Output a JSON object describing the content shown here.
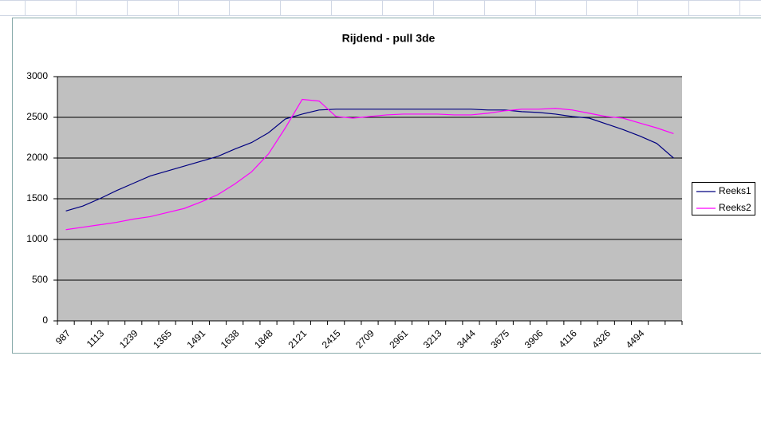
{
  "chart_data": {
    "type": "line",
    "title": "Rijdend - pull 3de",
    "categories": [
      "987",
      null,
      "1113",
      null,
      "1239",
      null,
      "1365",
      null,
      "1491",
      null,
      "1638",
      null,
      "1848",
      null,
      "2121",
      null,
      "2415",
      null,
      "2709",
      null,
      "2961",
      null,
      "3213",
      null,
      "3444",
      null,
      "3675",
      null,
      "3906",
      null,
      "4116",
      null,
      "4326",
      null,
      "4494",
      null,
      null
    ],
    "series": [
      {
        "name": "Reeks1",
        "color": "#000080",
        "values": [
          1350,
          1410,
          1500,
          1600,
          1690,
          1780,
          1840,
          1900,
          1960,
          2020,
          2110,
          2190,
          2310,
          2480,
          2540,
          2590,
          2600,
          2600,
          2600,
          2600,
          2600,
          2600,
          2600,
          2600,
          2600,
          2590,
          2590,
          2570,
          2560,
          2540,
          2510,
          2490,
          2420,
          2350,
          2270,
          2180,
          2000
        ]
      },
      {
        "name": "Reeks2",
        "color": "#ff00ff",
        "values": [
          1120,
          1150,
          1180,
          1210,
          1250,
          1280,
          1330,
          1380,
          1460,
          1550,
          1680,
          1830,
          2050,
          2370,
          2720,
          2700,
          2510,
          2490,
          2510,
          2530,
          2540,
          2540,
          2540,
          2530,
          2530,
          2550,
          2580,
          2600,
          2600,
          2610,
          2590,
          2550,
          2510,
          2490,
          2430,
          2370,
          2300
        ]
      }
    ],
    "ylim": [
      0,
      3000
    ],
    "yticks": [
      0,
      500,
      1000,
      1500,
      2000,
      2500,
      3000
    ],
    "grid": true,
    "legend": "right"
  }
}
